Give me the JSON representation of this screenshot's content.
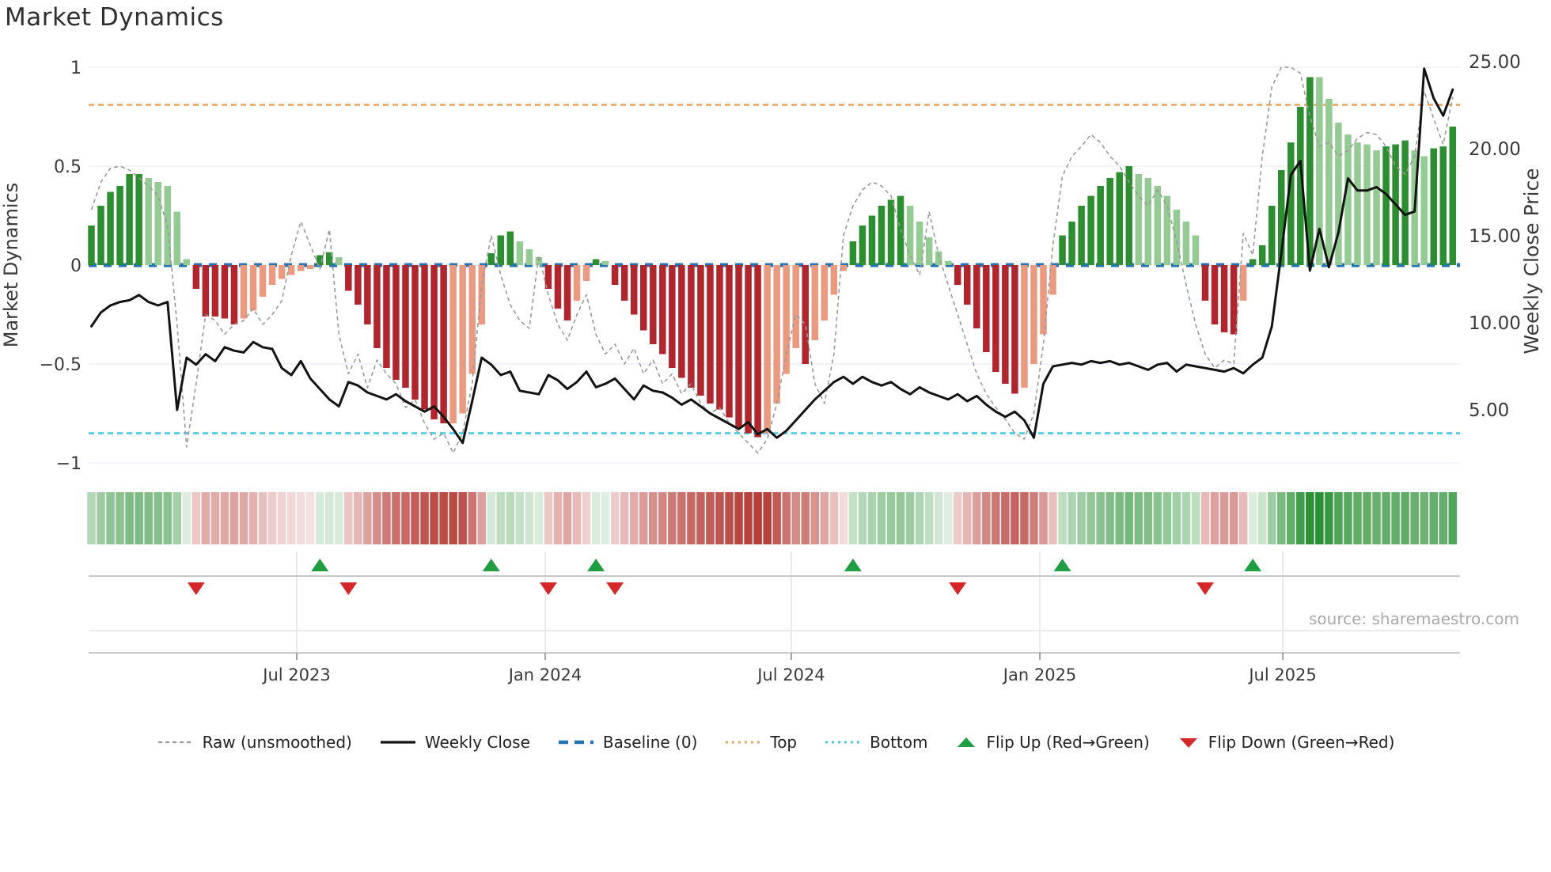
{
  "title": "Market Dynamics",
  "source": "source: sharemaestro.com",
  "left_axis": {
    "title": "Market Dynamics",
    "ticks": [
      {
        "label": "1",
        "value": 1
      },
      {
        "label": "0.5",
        "value": 0.5
      },
      {
        "label": "0",
        "value": 0
      },
      {
        "label": "−0.5",
        "value": -0.5
      },
      {
        "label": "−1",
        "value": -1
      }
    ],
    "ylim": [
      -1,
      1
    ]
  },
  "right_axis": {
    "title": "Weekly Close Price",
    "ticks": [
      {
        "label": "25.00",
        "value": 25
      },
      {
        "label": "20.00",
        "value": 20
      },
      {
        "label": "15.00",
        "value": 15
      },
      {
        "label": "10.00",
        "value": 10
      },
      {
        "label": "5.00",
        "value": 5
      }
    ]
  },
  "legend": [
    {
      "type": "dash-gray",
      "label": "Raw (unsmoothed)"
    },
    {
      "type": "solid-black",
      "label": "Weekly Close"
    },
    {
      "type": "dash-blue",
      "label": "Baseline (0)"
    },
    {
      "type": "dot-orange",
      "label": "Top"
    },
    {
      "type": "dot-cyan",
      "label": "Bottom"
    },
    {
      "type": "tri-up",
      "label": "Flip Up (Red→Green)"
    },
    {
      "type": "tri-down",
      "label": "Flip Down (Green→Red)"
    }
  ],
  "colors": {
    "dark_green": "#2b8f2f",
    "light_green": "#93cb93",
    "dark_red": "#b2252d",
    "light_red": "#ec9a7f",
    "baseline_blue": "#2273b5",
    "top_orange": "#f2a45c",
    "bottom_cyan": "#3fc8e8",
    "raw_gray": "#999999",
    "price_black": "#131313",
    "grid": "#eef0f6",
    "band_line": "#c9c9c9",
    "band_line_light": "#dedede",
    "axis_line": "#b9b9b9",
    "band_vgrid": "#e4e4e4",
    "tick_mark": "#999999",
    "heat_green": "#2a9134",
    "heat_red": "#b5352f",
    "tick_text": "#3a3a3a",
    "flip_up_green": "#1e9e40",
    "flip_down_red": "#d62728"
  },
  "chart_data": {
    "type": "bar",
    "subtype": "oscillator with secondary price line",
    "x_unit": "week",
    "n_weeks": 144,
    "grid": true,
    "legend_position": "bottom-center",
    "x_ticks": [
      {
        "label": "Jul 2023",
        "week": 21.57
      },
      {
        "label": "Jan 2024",
        "week": 47.67
      },
      {
        "label": "Jul 2024",
        "week": 73.52
      },
      {
        "label": "Jan 2025",
        "week": 99.63
      },
      {
        "label": "Jul 2025",
        "week": 125.15
      }
    ],
    "left_ylim": [
      -1,
      1
    ],
    "right_ylim": [
      1.5,
      25.3
    ],
    "thresholds": {
      "baseline": 0,
      "top": 0.81,
      "bottom": -0.85
    },
    "series": [
      {
        "name": "Oscillator (bars)",
        "values": [
          0.2,
          0.3,
          0.37,
          0.4,
          0.46,
          0.46,
          0.44,
          0.42,
          0.4,
          0.27,
          0.03,
          -0.12,
          -0.26,
          -0.26,
          -0.27,
          -0.3,
          -0.27,
          -0.23,
          -0.16,
          -0.1,
          -0.07,
          -0.05,
          -0.03,
          -0.02,
          0.05,
          0.065,
          0.04,
          -0.13,
          -0.2,
          -0.3,
          -0.42,
          -0.52,
          -0.58,
          -0.62,
          -0.68,
          -0.73,
          -0.78,
          -0.8,
          -0.8,
          -0.75,
          -0.55,
          -0.3,
          0.06,
          0.15,
          0.17,
          0.12,
          0.08,
          0.04,
          -0.12,
          -0.22,
          -0.28,
          -0.18,
          -0.08,
          0.03,
          0.02,
          -0.1,
          -0.18,
          -0.25,
          -0.33,
          -0.4,
          -0.45,
          -0.52,
          -0.57,
          -0.62,
          -0.66,
          -0.7,
          -0.73,
          -0.77,
          -0.82,
          -0.85,
          -0.87,
          -0.85,
          -0.7,
          -0.55,
          -0.42,
          -0.5,
          -0.38,
          -0.28,
          -0.15,
          -0.03,
          0.12,
          0.2,
          0.25,
          0.3,
          0.33,
          0.35,
          0.3,
          0.22,
          0.14,
          0.07,
          0.02,
          -0.1,
          -0.2,
          -0.32,
          -0.44,
          -0.54,
          -0.6,
          -0.65,
          -0.62,
          -0.5,
          -0.35,
          -0.15,
          0.15,
          0.22,
          0.3,
          0.35,
          0.4,
          0.44,
          0.47,
          0.5,
          0.46,
          0.44,
          0.4,
          0.35,
          0.28,
          0.22,
          0.15,
          -0.18,
          -0.3,
          -0.34,
          -0.35,
          -0.18,
          0.03,
          0.1,
          0.3,
          0.48,
          0.62,
          0.8,
          0.95,
          0.95,
          0.84,
          0.72,
          0.66,
          0.62,
          0.61,
          0.58,
          0.6,
          0.61,
          0.63,
          0.58,
          0.55,
          0.59,
          0.6,
          0.7
        ],
        "tones": "ddddddllllldddddllllllllddlddddddddddd llllddd lllddd lld l dddddddddddddddd llll d llll dddddd lllll ddddddd llll dddddddd lllllll dddd l ddddddd lllllll ddd ll ddd"
      },
      {
        "name": "Raw (unsmoothed)",
        "values": [
          0.28,
          0.42,
          0.49,
          0.5,
          0.48,
          0.44,
          0.4,
          0.35,
          0.2,
          -0.3,
          -0.92,
          -0.6,
          -0.25,
          -0.28,
          -0.35,
          -0.3,
          -0.28,
          -0.22,
          -0.3,
          -0.25,
          -0.18,
          0.05,
          0.22,
          0.1,
          -0.02,
          0.18,
          -0.35,
          -0.55,
          -0.45,
          -0.62,
          -0.48,
          -0.55,
          -0.6,
          -0.72,
          -0.68,
          -0.8,
          -0.88,
          -0.85,
          -0.95,
          -0.85,
          -0.6,
          -0.1,
          0.15,
          -0.05,
          -0.2,
          -0.28,
          -0.32,
          0.05,
          -0.15,
          -0.3,
          -0.38,
          -0.25,
          -0.15,
          -0.35,
          -0.45,
          -0.4,
          -0.5,
          -0.42,
          -0.55,
          -0.48,
          -0.6,
          -0.55,
          -0.65,
          -0.6,
          -0.7,
          -0.75,
          -0.72,
          -0.8,
          -0.85,
          -0.9,
          -0.95,
          -0.88,
          -0.7,
          -0.45,
          -0.25,
          -0.3,
          -0.6,
          -0.7,
          -0.45,
          0.15,
          0.3,
          0.38,
          0.42,
          0.4,
          0.35,
          0.18,
          0.05,
          -0.05,
          0.27,
          0.05,
          -0.1,
          -0.25,
          -0.4,
          -0.55,
          -0.65,
          -0.72,
          -0.78,
          -0.85,
          -0.88,
          -0.75,
          -0.4,
          0.1,
          0.45,
          0.55,
          0.6,
          0.66,
          0.62,
          0.55,
          0.5,
          0.42,
          0.35,
          0.3,
          0.38,
          0.3,
          0.12,
          -0.1,
          -0.3,
          -0.45,
          -0.52,
          -0.48,
          -0.5,
          0.16,
          0.05,
          0.55,
          0.9,
          1.0,
          1.0,
          0.97,
          0.75,
          0.6,
          0.62,
          0.55,
          0.58,
          0.64,
          0.67,
          0.66,
          0.6,
          0.5,
          0.46,
          0.55,
          0.88,
          0.74,
          0.61,
          0.85
        ]
      },
      {
        "name": "Weekly Close",
        "axis": "right",
        "values": [
          9.8,
          10.6,
          11.0,
          11.2,
          11.3,
          11.6,
          11.2,
          11.0,
          11.2,
          5.0,
          8.0,
          7.6,
          8.2,
          7.8,
          8.6,
          8.4,
          8.3,
          8.9,
          8.6,
          8.5,
          7.4,
          7.0,
          7.8,
          6.8,
          6.2,
          5.6,
          5.2,
          6.6,
          6.4,
          6.0,
          5.8,
          5.6,
          5.9,
          5.5,
          5.2,
          4.9,
          5.2,
          4.6,
          3.9,
          3.1,
          5.5,
          8.0,
          7.6,
          7.0,
          7.2,
          6.1,
          6.0,
          5.9,
          7.0,
          6.7,
          6.2,
          6.6,
          7.2,
          6.3,
          6.5,
          6.8,
          6.2,
          5.6,
          6.4,
          6.1,
          6.0,
          5.7,
          5.3,
          5.6,
          5.2,
          4.8,
          4.5,
          4.2,
          3.9,
          4.3,
          3.6,
          3.9,
          3.4,
          3.8,
          4.4,
          5.0,
          5.6,
          6.1,
          6.6,
          6.9,
          6.5,
          6.9,
          6.6,
          6.4,
          6.6,
          6.2,
          5.9,
          6.3,
          6.0,
          5.8,
          5.6,
          5.9,
          5.5,
          5.8,
          5.3,
          4.9,
          4.6,
          4.9,
          4.4,
          3.4,
          6.5,
          7.5,
          7.6,
          7.7,
          7.6,
          7.8,
          7.7,
          7.8,
          7.6,
          7.7,
          7.5,
          7.3,
          7.6,
          7.7,
          7.2,
          7.6,
          7.5,
          7.4,
          7.3,
          7.2,
          7.4,
          7.1,
          7.6,
          8.0,
          9.8,
          14.0,
          18.5,
          19.3,
          13.0,
          15.4,
          13.2,
          15.2,
          18.3,
          17.6,
          17.6,
          17.8,
          17.4,
          16.8,
          16.2,
          16.4,
          24.6,
          22.9,
          21.9,
          23.4
        ]
      }
    ],
    "heatmap": {
      "source": "oscillator values, green positive / red negative, intensity = |value|"
    },
    "flip_up_weeks": [
      24,
      42,
      53,
      80,
      102,
      122
    ],
    "flip_down_weeks": [
      11,
      27,
      48,
      55,
      91,
      117
    ]
  }
}
